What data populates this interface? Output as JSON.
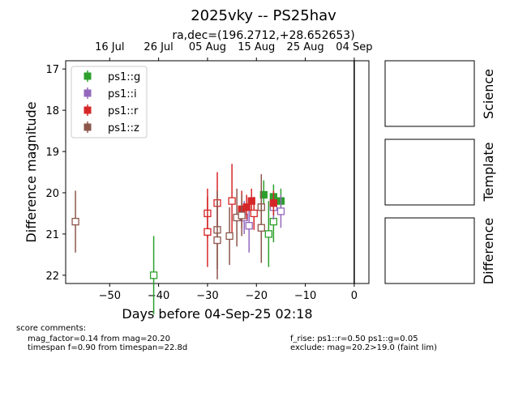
{
  "chart_data": {
    "type": "scatter",
    "title": "2025vky -- PS25hav",
    "subtitle": "ra,dec=(196.2712,+28.652653)",
    "xlabel": "Days before 04-Sep-25 02:18",
    "ylabel": "Difference magnitude",
    "xlim": [
      -59,
      3
    ],
    "ylim": [
      22.2,
      16.8
    ],
    "y_inverted": true,
    "xticks": [
      -50,
      -40,
      -30,
      -20,
      -10,
      0
    ],
    "xtick_labels": [
      "−50",
      "−40",
      "−30",
      "−20",
      "−10",
      "0"
    ],
    "yticks": [
      17,
      18,
      19,
      20,
      21,
      22
    ],
    "ytick_labels": [
      "17",
      "18",
      "19",
      "20",
      "21",
      "22"
    ],
    "top_axis_ticks": [
      {
        "x": -50,
        "label": "16 Jul"
      },
      {
        "x": -40,
        "label": "26 Jul"
      },
      {
        "x": -30,
        "label": "05 Aug"
      },
      {
        "x": -20,
        "label": "15 Aug"
      },
      {
        "x": -10,
        "label": "25 Aug"
      },
      {
        "x": 0,
        "label": "04 Sep"
      }
    ],
    "reference_line_x": 0,
    "grid": false,
    "legend_position": "top-left",
    "series": [
      {
        "name": "ps1::g",
        "color": "#2ca02c",
        "points": [
          {
            "x": -41,
            "y": 22.0,
            "err": 0.95,
            "filled": false
          },
          {
            "x": -18.5,
            "y": 20.05,
            "err": 0.35,
            "filled": true
          },
          {
            "x": -16.5,
            "y": 20.1,
            "err": 0.3,
            "filled": true
          },
          {
            "x": -15,
            "y": 20.2,
            "err": 0.3,
            "filled": true
          },
          {
            "x": -17.5,
            "y": 21.0,
            "err": 0.8,
            "filled": false
          },
          {
            "x": -16.5,
            "y": 20.7,
            "err": 0.5,
            "filled": false
          }
        ]
      },
      {
        "name": "ps1::i",
        "color": "#9467bd",
        "points": [
          {
            "x": -22.5,
            "y": 20.6,
            "err": 0.4,
            "filled": false
          },
          {
            "x": -21.5,
            "y": 20.8,
            "err": 0.65,
            "filled": false
          },
          {
            "x": -16.5,
            "y": 20.35,
            "err": 0.3,
            "filled": false
          },
          {
            "x": -15,
            "y": 20.45,
            "err": 0.4,
            "filled": false
          }
        ]
      },
      {
        "name": "ps1::r",
        "color": "#d62728",
        "points": [
          {
            "x": -30,
            "y": 20.5,
            "err": 0.6,
            "filled": false
          },
          {
            "x": -30,
            "y": 20.95,
            "err": 0.85,
            "filled": false
          },
          {
            "x": -25,
            "y": 20.2,
            "err": 0.9,
            "filled": false
          },
          {
            "x": -28,
            "y": 20.25,
            "err": 0.75,
            "filled": false
          },
          {
            "x": -23,
            "y": 20.4,
            "err": 0.45,
            "filled": true
          },
          {
            "x": -22,
            "y": 20.35,
            "err": 0.3,
            "filled": true
          },
          {
            "x": -21,
            "y": 20.2,
            "err": 0.3,
            "filled": true
          },
          {
            "x": -20.5,
            "y": 20.5,
            "err": 0.4,
            "filled": false
          },
          {
            "x": -16.5,
            "y": 20.25,
            "err": 0.3,
            "filled": true
          }
        ]
      },
      {
        "name": "ps1::z",
        "color": "#8c564b",
        "points": [
          {
            "x": -57,
            "y": 20.7,
            "err": 0.75,
            "filled": false
          },
          {
            "x": -28,
            "y": 20.9,
            "err": 0.95,
            "filled": false
          },
          {
            "x": -28,
            "y": 21.15,
            "err": 0.95,
            "filled": false
          },
          {
            "x": -25.5,
            "y": 21.05,
            "err": 0.7,
            "filled": false
          },
          {
            "x": -24,
            "y": 20.6,
            "err": 0.7,
            "filled": false
          },
          {
            "x": -23,
            "y": 20.55,
            "err": 0.5,
            "filled": false
          },
          {
            "x": -19,
            "y": 20.35,
            "err": 0.8,
            "filled": false
          },
          {
            "x": -19,
            "y": 20.85,
            "err": 0.85,
            "filled": false
          }
        ]
      }
    ]
  },
  "side_panels": {
    "science_label": "Science",
    "template_label": "Template",
    "difference_label": "Difference"
  },
  "comments": {
    "header": "score comments:",
    "left_lines": [
      "mag_factor=0.14 from mag=20.20",
      "timespan f=0.90 from timespan=22.8d"
    ],
    "right_lines": [
      "f_rise: ps1::r=0.50 ps1::g=0.05",
      "exclude: mag=20.2>19.0 (faint lim)"
    ]
  }
}
